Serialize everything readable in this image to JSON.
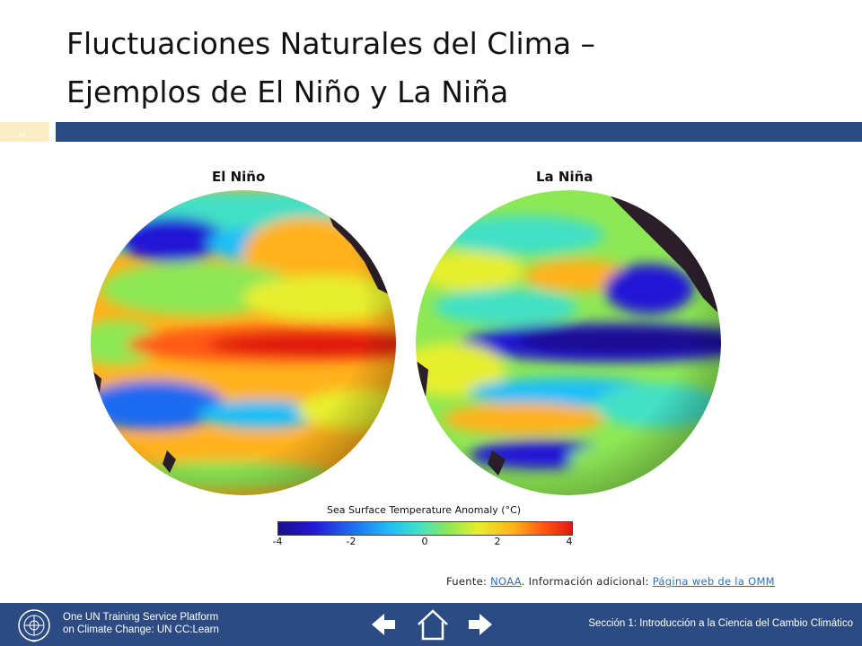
{
  "slide": {
    "title_line1": "Fluctuaciones Naturales del Clima –",
    "title_line2": "Ejemplos de El Niño y La Niña",
    "slide_number": "18"
  },
  "figure": {
    "left_label": "El Niño",
    "right_label": "La Niña",
    "colorbar_title": "Sea Surface Temperature Anomaly (°C)",
    "colorbar_ticks": [
      "-4",
      "-2",
      "0",
      "2",
      "4"
    ],
    "colors": {
      "cold": "#1a0f8c",
      "cool": "#1fbff7",
      "neutral": "#8ee854",
      "warm": "#ffb21a",
      "hot": "#e0180e",
      "land": "#2b1f2a"
    }
  },
  "source": {
    "prefix": "Fuente: ",
    "noaa_link": "NOAA",
    "middle": ". Información adicional: ",
    "omm_link": "Página web de la OMM"
  },
  "footer": {
    "org_line1": "One UN Training Service Platform",
    "org_line2": "on Climate Change: UN CC:Learn",
    "section": "Sección 1: Introducción a la Ciencia del Cambio Climático",
    "prev_icon": "arrow-left-icon",
    "home_icon": "home-icon",
    "next_icon": "arrow-right-icon"
  }
}
